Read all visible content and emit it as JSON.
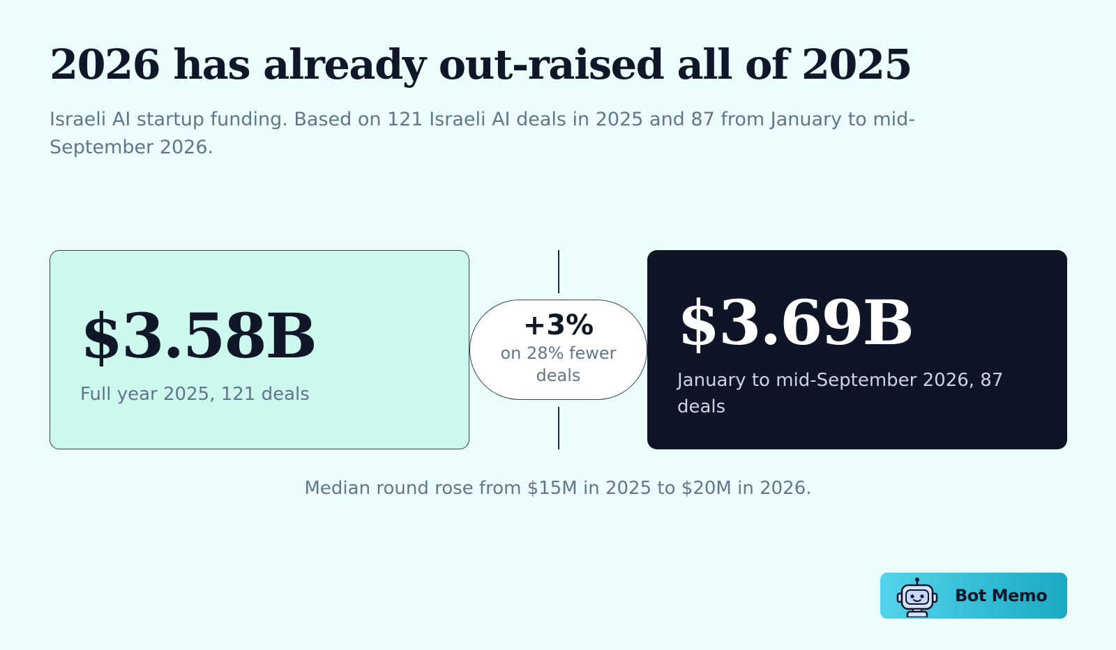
{
  "header": {
    "title": "2026 has already out-raised all of 2025",
    "subtitle": "Israeli AI startup funding. Based on 121 Israeli AI deals in 2025 and 87 from January to mid-September 2026."
  },
  "comparison": {
    "left": {
      "value": "$3.58B",
      "caption": "Full year 2025, 121 deals"
    },
    "change": {
      "value": "+3%",
      "caption": "on 28% fewer deals"
    },
    "right": {
      "value": "$3.69B",
      "caption": "January to mid-September 2026, 87 deals"
    }
  },
  "footnote": "Median round rose from $15M in 2025 to $20M in 2026.",
  "brand": {
    "name": "Bot Memo",
    "logo_icon": "robot-icon"
  },
  "colors": {
    "background": "#ebfdfd",
    "left_card": "#cdf8ee",
    "right_card": "#0e1526",
    "accent": "#1aa9c4"
  }
}
